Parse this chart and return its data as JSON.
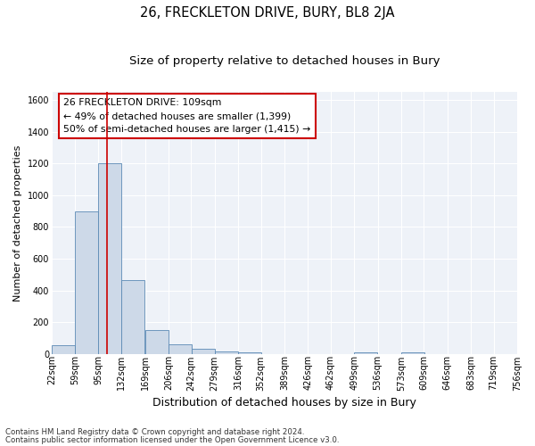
{
  "title": "26, FRECKLETON DRIVE, BURY, BL8 2JA",
  "subtitle": "Size of property relative to detached houses in Bury",
  "xlabel": "Distribution of detached houses by size in Bury",
  "ylabel": "Number of detached properties",
  "footnote1": "Contains HM Land Registry data © Crown copyright and database right 2024.",
  "footnote2": "Contains public sector information licensed under the Open Government Licence v3.0.",
  "annotation_line1": "26 FRECKLETON DRIVE: 109sqm",
  "annotation_line2": "← 49% of detached houses are smaller (1,399)",
  "annotation_line3": "50% of semi-detached houses are larger (1,415) →",
  "bar_color": "#cdd9e8",
  "bar_edge_color": "#5b8ab5",
  "vline_color": "#cc0000",
  "vline_x": 109,
  "bins": [
    22,
    59,
    95,
    132,
    169,
    206,
    242,
    279,
    316,
    352,
    389,
    426,
    462,
    499,
    536,
    573,
    609,
    646,
    683,
    719,
    756
  ],
  "values": [
    55,
    900,
    1200,
    465,
    150,
    60,
    32,
    18,
    12,
    0,
    0,
    0,
    0,
    12,
    0,
    12,
    0,
    0,
    0,
    0
  ],
  "ylim": [
    0,
    1650
  ],
  "yticks": [
    0,
    200,
    400,
    600,
    800,
    1000,
    1200,
    1400,
    1600
  ],
  "background_color": "#eef2f8",
  "grid_color": "#ffffff",
  "title_fontsize": 10.5,
  "subtitle_fontsize": 9.5,
  "xlabel_fontsize": 9,
  "ylabel_fontsize": 8,
  "tick_fontsize": 7,
  "annot_fontsize": 7.8,
  "footnote_fontsize": 6.2
}
